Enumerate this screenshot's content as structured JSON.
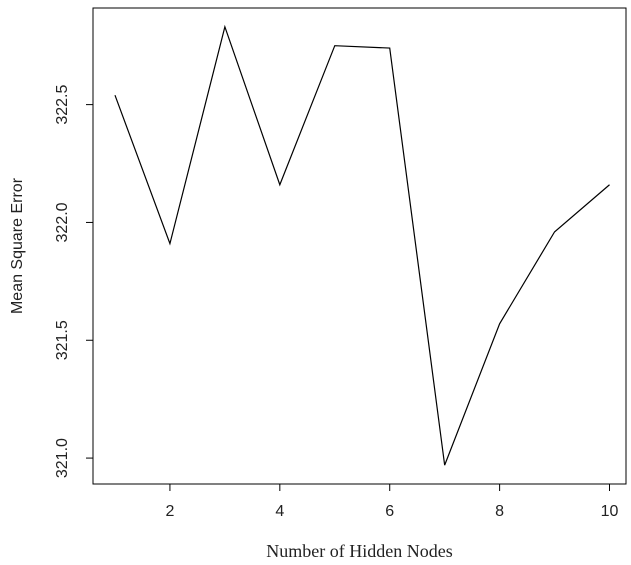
{
  "chart_data": {
    "type": "line",
    "title": "",
    "xlabel": "Number of Hidden Nodes",
    "ylabel": "Mean Square Error",
    "x": [
      1,
      2,
      3,
      4,
      5,
      6,
      7,
      8,
      9,
      10
    ],
    "series": [
      {
        "values": [
          322.54,
          321.91,
          322.83,
          322.16,
          322.75,
          322.74,
          320.97,
          321.57,
          321.96,
          322.16
        ]
      }
    ],
    "xlim": [
      0.6,
      10.3
    ],
    "ylim": [
      320.89,
      322.91
    ],
    "x_ticks": [
      2,
      4,
      6,
      8,
      10
    ],
    "x_tick_labels": [
      "2",
      "4",
      "6",
      "8",
      "10"
    ],
    "y_ticks": [
      321.0,
      321.5,
      322.0,
      322.5
    ],
    "y_tick_labels": [
      "321.0",
      "321.5",
      "322.0",
      "322.5"
    ],
    "grid": false,
    "line_color": "#000000"
  }
}
